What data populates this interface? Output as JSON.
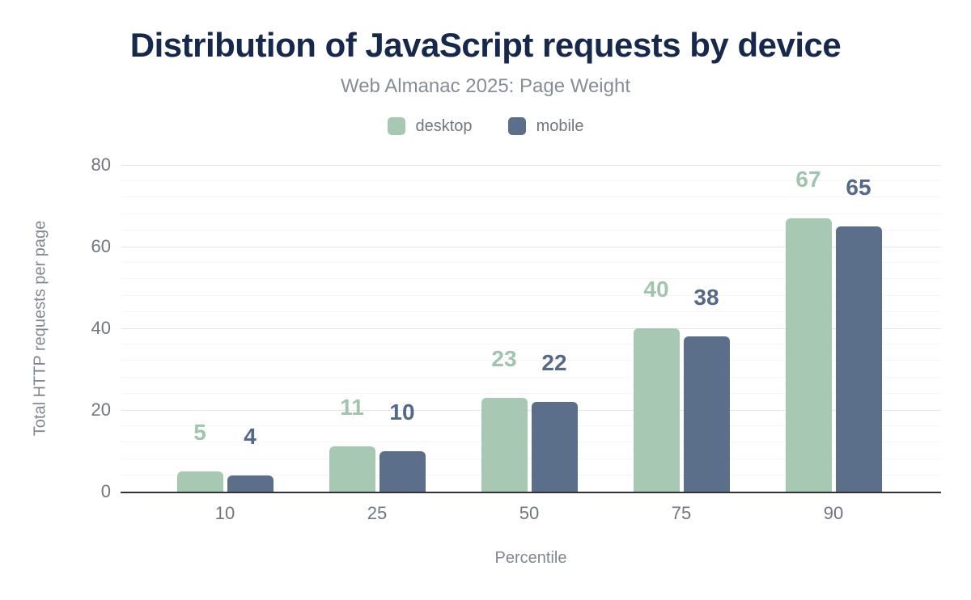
{
  "header": {
    "title": "Distribution of JavaScript requests by device",
    "subtitle": "Web Almanac 2025: Page Weight"
  },
  "legend": {
    "items": [
      {
        "label": "desktop",
        "color": "#a7c9b4"
      },
      {
        "label": "mobile",
        "color": "#5c6f8a"
      }
    ]
  },
  "chart_data": {
    "type": "bar",
    "title": "Distribution of JavaScript requests by device",
    "subtitle": "Web Almanac 2025: Page Weight",
    "categories": [
      "10",
      "25",
      "50",
      "75",
      "90"
    ],
    "series": [
      {
        "name": "desktop",
        "values": [
          5,
          11,
          23,
          40,
          67
        ],
        "color": "#a7c9b4",
        "label_color": "#a0c5af"
      },
      {
        "name": "mobile",
        "values": [
          4,
          10,
          22,
          38,
          65
        ],
        "color": "#5c6f8a",
        "label_color": "#54688a"
      }
    ],
    "xlabel": "Percentile",
    "ylabel": "Total HTTP requests per page",
    "ylim": [
      0,
      80
    ],
    "yticks": [
      0,
      20,
      40,
      60,
      80
    ],
    "minor_grid_step": 4,
    "grid": true,
    "legend_position": "top",
    "colors": {
      "title": "#16294d",
      "subtitle": "#868d96",
      "axis_text": "#70767e",
      "axis_title_text": "#81878f",
      "axis_line": "#30343a",
      "major_grid": "#e4e4e4",
      "minor_grid": "#f5f5f5",
      "background": "#ffffff"
    }
  }
}
